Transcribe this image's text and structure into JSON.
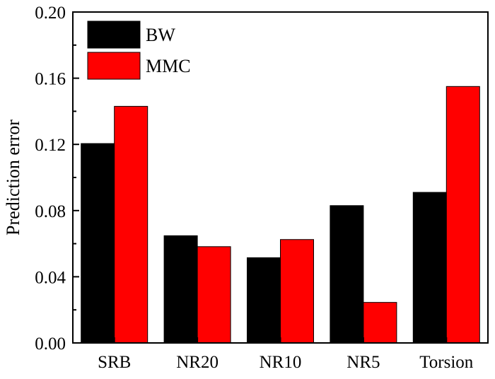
{
  "chart_data": {
    "type": "bar",
    "categories": [
      "SRB",
      "NR20",
      "NR10",
      "NR5",
      "Torsion"
    ],
    "series": [
      {
        "name": "BW",
        "values": [
          0.1205,
          0.0648,
          0.0515,
          0.083,
          0.091
        ],
        "color": "#000000"
      },
      {
        "name": "MMC",
        "values": [
          0.143,
          0.0582,
          0.0625,
          0.0245,
          0.155
        ],
        "color": "#ff0000"
      }
    ],
    "title": "",
    "xlabel": "",
    "ylabel": "Prediction error",
    "ylim": [
      0,
      0.2
    ],
    "yticks": [
      "0.00",
      "0.04",
      "0.08",
      "0.12",
      "0.16",
      "0.20"
    ],
    "grid": false,
    "legend_position": "top-left"
  }
}
